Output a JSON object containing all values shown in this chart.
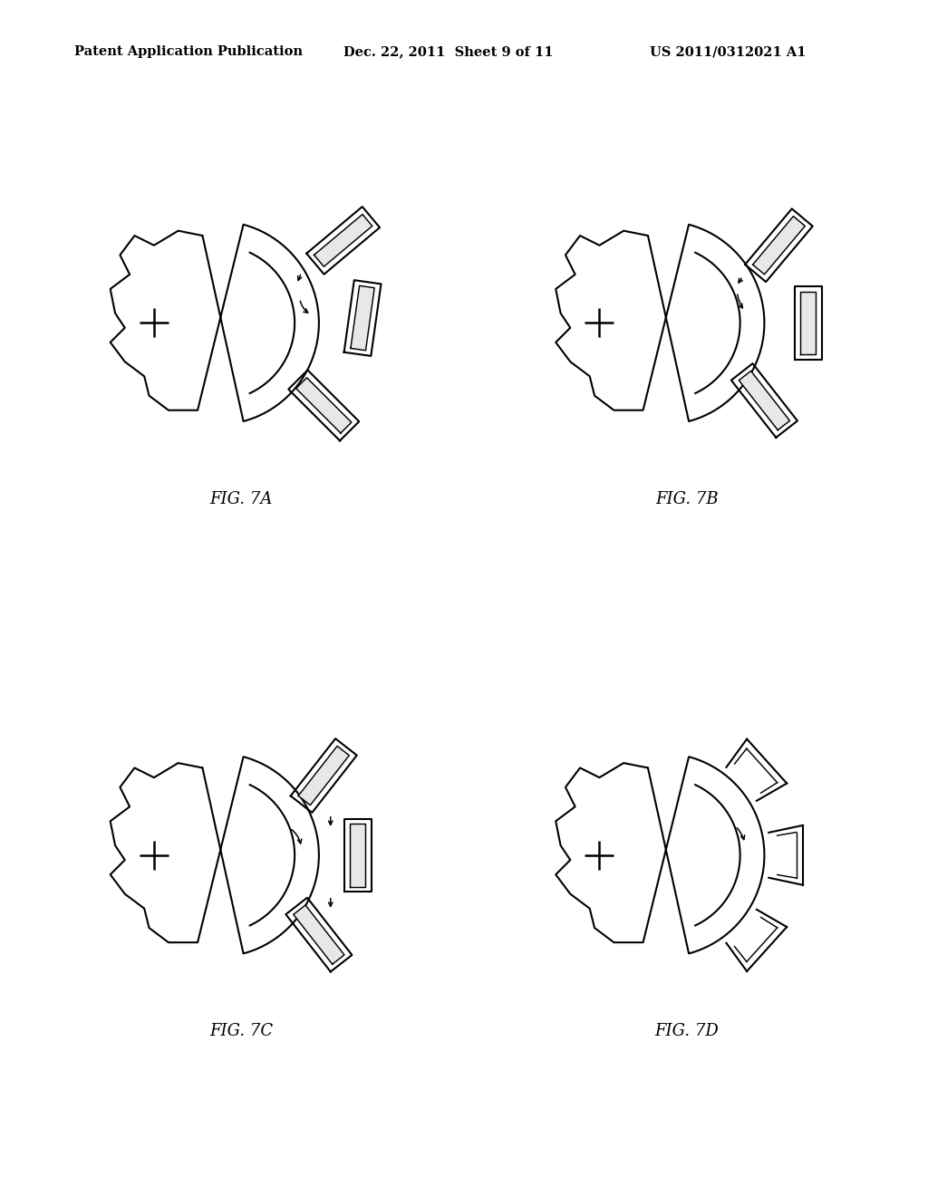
{
  "title_left": "Patent Application Publication",
  "title_mid": "Dec. 22, 2011  Sheet 9 of 11",
  "title_right": "US 2011/0312021 A1",
  "fig_labels": [
    "FIG. 7A",
    "FIG. 7B",
    "FIG. 7C",
    "FIG. 7D"
  ],
  "background": "#ffffff",
  "line_color": "#000000",
  "lw": 1.5
}
